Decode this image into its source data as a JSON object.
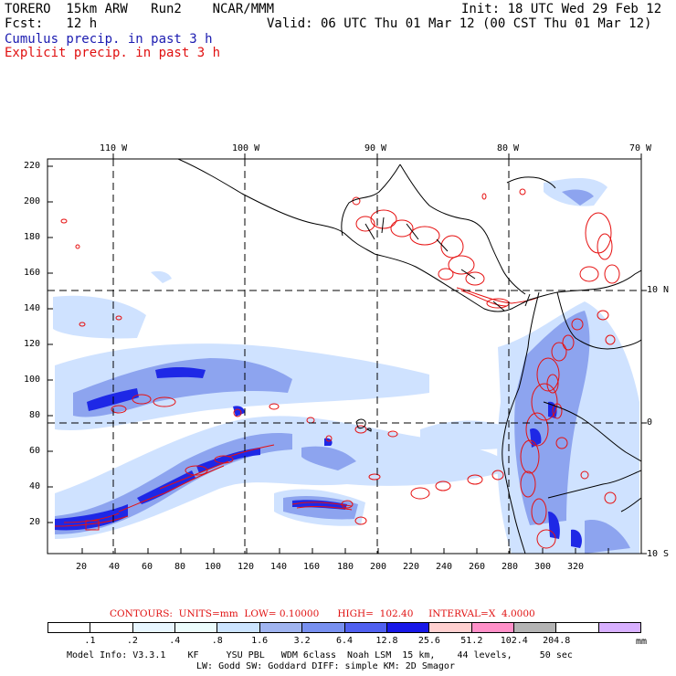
{
  "header": {
    "line1_left": "TORERO  15km ARW   Run2    NCAR/MMM",
    "line1_right": "Init: 18 UTC Wed 29 Feb 12",
    "line2_left": "Fcst:   12 h",
    "line2_right": "Valid: 06 UTC Thu 01 Mar 12 (00 CST Thu 01 Mar 12)",
    "legend_cumulus": "Cumulus precip. in past 3 h",
    "legend_explicit": "Explicit precip. in past 3 h"
  },
  "map": {
    "longitude_labels": [
      "110 W",
      "100 W",
      "90 W",
      "80 W",
      "70 W"
    ],
    "latitude_labels": [
      "10 N",
      "0",
      "10 S"
    ],
    "y_axis_ticks": [
      "220",
      "200",
      "180",
      "160",
      "140",
      "120",
      "100",
      "80",
      "60",
      "40",
      "20"
    ],
    "x_axis_ticks": [
      "20",
      "40",
      "60",
      "80",
      "100",
      "120",
      "140",
      "160",
      "180",
      "200",
      "220",
      "240",
      "260",
      "280",
      "300",
      "320"
    ],
    "colors": {
      "cumulus": "#1e28e6",
      "explicit": "#e61010",
      "coastline": "#000000"
    }
  },
  "contours_info": {
    "text": "CONTOURS:  UNITS=mm  LOW= 0.10000      HIGH=  102.40     INTERVAL=X  4.0000"
  },
  "colorbar": {
    "labels": [
      ".1",
      ".2",
      ".4",
      ".8",
      "1.6",
      "3.2",
      "6.4",
      "12.8",
      "25.6",
      "51.2",
      "102.4",
      "204.8"
    ],
    "units": "mm",
    "colors": [
      "#ffffff",
      "#ffffff",
      "#e8f6ff",
      "#ecfcfc",
      "#cce4ff",
      "#a0b4f0",
      "#7890f0",
      "#5060f0",
      "#1818e8",
      "#ffd0d0",
      "#ff90c8",
      "#b4b4b4",
      "#ffffff",
      "#d8b0ff"
    ]
  },
  "footer": {
    "line1": "Model Info: V3.3.1    KF     YSU PBL   WDM 6class  Noah LSM  15 km,    44 levels,     50 sec",
    "line2": "LW: Godd SW: Goddard DIFF: simple KM: 2D Smagor"
  }
}
